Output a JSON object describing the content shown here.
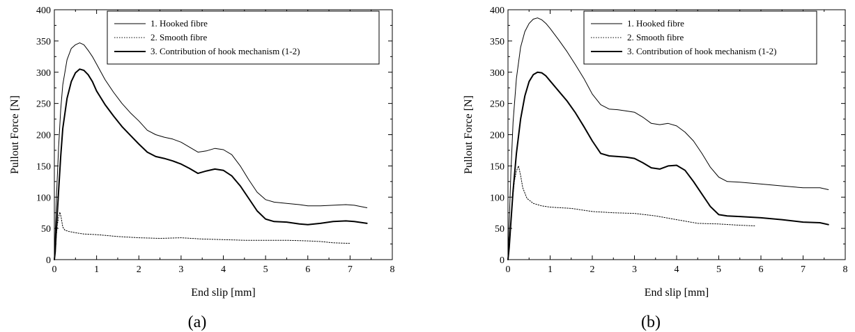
{
  "chart_data": [
    {
      "type": "line",
      "caption": "(a)",
      "xlabel": "End slip [mm]",
      "ylabel": "Pullout Force [N]",
      "xlim": [
        0,
        8
      ],
      "ylim": [
        0,
        400
      ],
      "xticks": [
        "0",
        "1",
        "2",
        "3",
        "4",
        "5",
        "6",
        "7",
        "8"
      ],
      "yticks": [
        "0",
        "50",
        "100",
        "150",
        "200",
        "250",
        "300",
        "350",
        "400"
      ],
      "grid": false,
      "legend_position": "top-right",
      "series": [
        {
          "name": "1. Hooked fibre",
          "style": "thin",
          "points": [
            [
              0,
              0
            ],
            [
              0.02,
              40
            ],
            [
              0.05,
              100
            ],
            [
              0.1,
              180
            ],
            [
              0.15,
              240
            ],
            [
              0.2,
              280
            ],
            [
              0.3,
              320
            ],
            [
              0.4,
              338
            ],
            [
              0.5,
              344
            ],
            [
              0.6,
              347
            ],
            [
              0.7,
              344
            ],
            [
              0.8,
              335
            ],
            [
              0.9,
              325
            ],
            [
              1.0,
              313
            ],
            [
              1.2,
              288
            ],
            [
              1.4,
              268
            ],
            [
              1.6,
              250
            ],
            [
              1.8,
              235
            ],
            [
              2.0,
              222
            ],
            [
              2.2,
              207
            ],
            [
              2.4,
              200
            ],
            [
              2.6,
              196
            ],
            [
              2.8,
              193
            ],
            [
              3.0,
              188
            ],
            [
              3.2,
              180
            ],
            [
              3.4,
              172
            ],
            [
              3.6,
              174
            ],
            [
              3.8,
              178
            ],
            [
              4.0,
              176
            ],
            [
              4.2,
              168
            ],
            [
              4.4,
              150
            ],
            [
              4.6,
              128
            ],
            [
              4.8,
              108
            ],
            [
              5.0,
              96
            ],
            [
              5.2,
              92
            ],
            [
              5.5,
              90
            ],
            [
              5.8,
              88
            ],
            [
              6.0,
              86
            ],
            [
              6.3,
              86
            ],
            [
              6.6,
              87
            ],
            [
              6.9,
              88
            ],
            [
              7.1,
              87
            ],
            [
              7.4,
              83
            ]
          ]
        },
        {
          "name": "2. Smooth fibre",
          "style": "dotted",
          "points": [
            [
              0,
              0
            ],
            [
              0.03,
              25
            ],
            [
              0.07,
              55
            ],
            [
              0.1,
              68
            ],
            [
              0.13,
              76
            ],
            [
              0.16,
              68
            ],
            [
              0.2,
              52
            ],
            [
              0.25,
              47
            ],
            [
              0.35,
              45
            ],
            [
              0.5,
              43
            ],
            [
              0.7,
              41
            ],
            [
              1.0,
              40
            ],
            [
              1.5,
              37
            ],
            [
              2.0,
              35
            ],
            [
              2.5,
              34
            ],
            [
              3.0,
              35
            ],
            [
              3.5,
              33
            ],
            [
              4.0,
              32
            ],
            [
              4.5,
              31
            ],
            [
              5.0,
              31
            ],
            [
              5.5,
              31
            ],
            [
              6.0,
              30
            ],
            [
              6.3,
              29
            ],
            [
              6.6,
              27
            ],
            [
              7.0,
              26
            ]
          ]
        },
        {
          "name": "3. Contribution of hook mechanism (1-2)",
          "style": "thick",
          "points": [
            [
              0,
              0
            ],
            [
              0.02,
              12
            ],
            [
              0.05,
              50
            ],
            [
              0.1,
              110
            ],
            [
              0.15,
              165
            ],
            [
              0.2,
              210
            ],
            [
              0.3,
              258
            ],
            [
              0.4,
              285
            ],
            [
              0.5,
              299
            ],
            [
              0.6,
              305
            ],
            [
              0.7,
              303
            ],
            [
              0.8,
              296
            ],
            [
              0.9,
              285
            ],
            [
              1.0,
              270
            ],
            [
              1.2,
              248
            ],
            [
              1.4,
              230
            ],
            [
              1.6,
              213
            ],
            [
              1.8,
              199
            ],
            [
              2.0,
              185
            ],
            [
              2.2,
              172
            ],
            [
              2.4,
              165
            ],
            [
              2.6,
              162
            ],
            [
              2.8,
              158
            ],
            [
              3.0,
              153
            ],
            [
              3.2,
              146
            ],
            [
              3.4,
              138
            ],
            [
              3.6,
              142
            ],
            [
              3.8,
              145
            ],
            [
              4.0,
              143
            ],
            [
              4.2,
              134
            ],
            [
              4.4,
              118
            ],
            [
              4.6,
              98
            ],
            [
              4.8,
              78
            ],
            [
              5.0,
              65
            ],
            [
              5.2,
              61
            ],
            [
              5.5,
              60
            ],
            [
              5.8,
              57
            ],
            [
              6.0,
              56
            ],
            [
              6.3,
              58
            ],
            [
              6.6,
              61
            ],
            [
              6.9,
              62
            ],
            [
              7.1,
              61
            ],
            [
              7.4,
              58
            ]
          ]
        }
      ]
    },
    {
      "type": "line",
      "caption": "(b)",
      "xlabel": "End slip [mm]",
      "ylabel": "Pullout Force [N]",
      "xlim": [
        0,
        8
      ],
      "ylim": [
        0,
        400
      ],
      "xticks": [
        "0",
        "1",
        "2",
        "3",
        "4",
        "5",
        "6",
        "7",
        "8"
      ],
      "yticks": [
        "0",
        "50",
        "100",
        "150",
        "200",
        "250",
        "300",
        "350",
        "400"
      ],
      "grid": false,
      "legend_position": "top-right",
      "series": [
        {
          "name": "1. Hooked fibre",
          "style": "thin",
          "points": [
            [
              0,
              0
            ],
            [
              0.03,
              60
            ],
            [
              0.07,
              140
            ],
            [
              0.12,
              220
            ],
            [
              0.2,
              290
            ],
            [
              0.3,
              340
            ],
            [
              0.4,
              365
            ],
            [
              0.5,
              378
            ],
            [
              0.6,
              385
            ],
            [
              0.7,
              387
            ],
            [
              0.8,
              384
            ],
            [
              0.9,
              378
            ],
            [
              1.0,
              370
            ],
            [
              1.2,
              352
            ],
            [
              1.4,
              333
            ],
            [
              1.6,
              312
            ],
            [
              1.8,
              290
            ],
            [
              2.0,
              265
            ],
            [
              2.2,
              248
            ],
            [
              2.4,
              241
            ],
            [
              2.6,
              240
            ],
            [
              2.8,
              238
            ],
            [
              3.0,
              236
            ],
            [
              3.2,
              228
            ],
            [
              3.4,
              218
            ],
            [
              3.6,
              216
            ],
            [
              3.8,
              218
            ],
            [
              4.0,
              214
            ],
            [
              4.2,
              204
            ],
            [
              4.4,
              190
            ],
            [
              4.6,
              170
            ],
            [
              4.8,
              148
            ],
            [
              5.0,
              132
            ],
            [
              5.2,
              125
            ],
            [
              5.5,
              124
            ],
            [
              6.0,
              121
            ],
            [
              6.5,
              118
            ],
            [
              7.0,
              115
            ],
            [
              7.4,
              115
            ],
            [
              7.6,
              112
            ]
          ]
        },
        {
          "name": "2. Smooth fibre",
          "style": "dotted",
          "points": [
            [
              0,
              0
            ],
            [
              0.05,
              45
            ],
            [
              0.1,
              90
            ],
            [
              0.15,
              125
            ],
            [
              0.2,
              142
            ],
            [
              0.25,
              150
            ],
            [
              0.3,
              135
            ],
            [
              0.35,
              115
            ],
            [
              0.45,
              98
            ],
            [
              0.6,
              90
            ],
            [
              0.8,
              86
            ],
            [
              1.0,
              84
            ],
            [
              1.5,
              82
            ],
            [
              2.0,
              77
            ],
            [
              2.5,
              75
            ],
            [
              3.0,
              74
            ],
            [
              3.5,
              70
            ],
            [
              4.0,
              64
            ],
            [
              4.5,
              58
            ],
            [
              5.0,
              57
            ],
            [
              5.5,
              55
            ],
            [
              5.85,
              54
            ]
          ]
        },
        {
          "name": "3. Contribution of hook mechanism (1-2)",
          "style": "thick",
          "points": [
            [
              0,
              0
            ],
            [
              0.03,
              20
            ],
            [
              0.07,
              60
            ],
            [
              0.12,
              110
            ],
            [
              0.2,
              170
            ],
            [
              0.3,
              225
            ],
            [
              0.4,
              262
            ],
            [
              0.5,
              285
            ],
            [
              0.6,
              296
            ],
            [
              0.7,
              300
            ],
            [
              0.8,
              299
            ],
            [
              0.9,
              294
            ],
            [
              1.0,
              286
            ],
            [
              1.2,
              270
            ],
            [
              1.4,
              254
            ],
            [
              1.6,
              235
            ],
            [
              1.8,
              213
            ],
            [
              2.0,
              190
            ],
            [
              2.2,
              170
            ],
            [
              2.4,
              166
            ],
            [
              2.6,
              165
            ],
            [
              2.8,
              164
            ],
            [
              3.0,
              162
            ],
            [
              3.2,
              155
            ],
            [
              3.4,
              147
            ],
            [
              3.6,
              145
            ],
            [
              3.8,
              150
            ],
            [
              4.0,
              151
            ],
            [
              4.2,
              143
            ],
            [
              4.4,
              125
            ],
            [
              4.6,
              105
            ],
            [
              4.8,
              85
            ],
            [
              5.0,
              72
            ],
            [
              5.2,
              70
            ],
            [
              5.5,
              69
            ],
            [
              6.0,
              67
            ],
            [
              6.5,
              64
            ],
            [
              7.0,
              60
            ],
            [
              7.4,
              59
            ],
            [
              7.6,
              56
            ]
          ]
        }
      ]
    }
  ]
}
